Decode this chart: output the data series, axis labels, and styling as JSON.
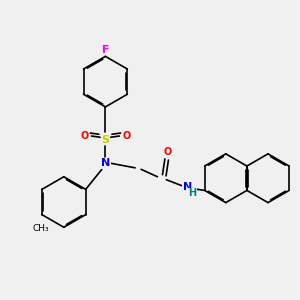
{
  "background_color": "#f0f0f0",
  "bond_color": "#000000",
  "atom_colors": {
    "F": "#ff00ff",
    "S": "#cccc00",
    "O": "#ff0000",
    "N": "#0000ff",
    "H": "#008080",
    "C": "#000000"
  },
  "figsize": [
    3.0,
    3.0
  ],
  "dpi": 100
}
